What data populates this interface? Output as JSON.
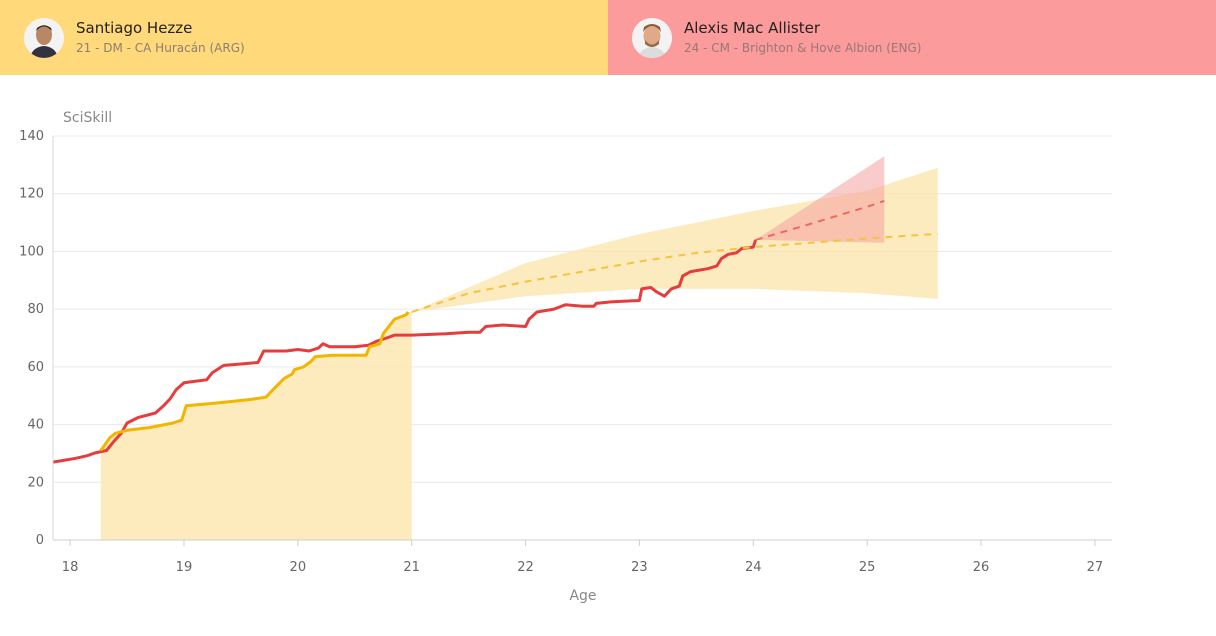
{
  "players": [
    {
      "name": "Santiago Hezze",
      "meta": "21 - DM - CA Huracán (ARG)",
      "color": "#ffd97a",
      "line_color": "#f2b500",
      "avatar_icon": "player-photo"
    },
    {
      "name": "Alexis Mac Allister",
      "meta": "24 - CM - Brighton & Hove Albion (ENG)",
      "color": "#fc9b9b",
      "line_color": "#e63c3c",
      "avatar_icon": "player-photo"
    }
  ],
  "chart_data": {
    "type": "line",
    "xlabel": "Age",
    "ylabel": "SciSkill",
    "xlim": [
      17.85,
      27.15
    ],
    "ylim": [
      0,
      140
    ],
    "xticks": [
      18,
      19,
      20,
      21,
      22,
      23,
      24,
      25,
      26,
      27
    ],
    "yticks": [
      0,
      20,
      40,
      60,
      80,
      100,
      120,
      140
    ],
    "grid": "horizontal",
    "series": [
      {
        "name": "Santiago Hezze",
        "color": "#f2b500",
        "history": [
          [
            18.27,
            31
          ],
          [
            18.35,
            35.5
          ],
          [
            18.4,
            37
          ],
          [
            18.5,
            38
          ],
          [
            18.7,
            39
          ],
          [
            18.9,
            40.5
          ],
          [
            18.98,
            41.5
          ],
          [
            19.02,
            46.5
          ],
          [
            19.3,
            47.5
          ],
          [
            19.6,
            48.8
          ],
          [
            19.72,
            49.5
          ],
          [
            19.78,
            52
          ],
          [
            19.88,
            56
          ],
          [
            19.95,
            57.5
          ],
          [
            19.97,
            59
          ],
          [
            20.05,
            60
          ],
          [
            20.12,
            62
          ],
          [
            20.15,
            63.5
          ],
          [
            20.3,
            64
          ],
          [
            20.6,
            64
          ],
          [
            20.63,
            67
          ],
          [
            20.72,
            68
          ],
          [
            20.75,
            71.5
          ],
          [
            20.82,
            75
          ],
          [
            20.85,
            76.5
          ],
          [
            20.95,
            78
          ],
          [
            20.97,
            79
          ]
        ],
        "history_band_bottom": 0,
        "projection": [
          [
            21.0,
            79
          ],
          [
            21.5,
            85.5
          ],
          [
            22,
            89.5
          ],
          [
            22.5,
            93
          ],
          [
            23,
            96.5
          ],
          [
            23.5,
            99.5
          ],
          [
            24,
            101.5
          ],
          [
            24.5,
            103
          ],
          [
            25,
            104.5
          ],
          [
            25.5,
            105.8
          ],
          [
            25.62,
            106
          ]
        ],
        "projection_upper": [
          [
            21.0,
            79
          ],
          [
            22,
            96
          ],
          [
            23,
            106
          ],
          [
            24,
            114
          ],
          [
            25,
            121
          ],
          [
            25.62,
            129
          ]
        ],
        "projection_lower": [
          [
            21.0,
            79
          ],
          [
            22,
            84.5
          ],
          [
            23,
            87
          ],
          [
            24,
            87
          ],
          [
            25,
            85.5
          ],
          [
            25.62,
            83.5
          ]
        ]
      },
      {
        "name": "Alexis Mac Allister",
        "color": "#e63c3c",
        "history": [
          [
            17.85,
            27
          ],
          [
            18.05,
            28.3
          ],
          [
            18.15,
            29.2
          ],
          [
            18.22,
            30.2
          ],
          [
            18.32,
            31
          ],
          [
            18.38,
            34
          ],
          [
            18.45,
            37
          ],
          [
            18.5,
            40.5
          ],
          [
            18.6,
            42.5
          ],
          [
            18.75,
            44
          ],
          [
            18.82,
            46.5
          ],
          [
            18.88,
            49
          ],
          [
            18.93,
            52
          ],
          [
            19.0,
            54.5
          ],
          [
            19.1,
            55
          ],
          [
            19.2,
            55.5
          ],
          [
            19.25,
            58
          ],
          [
            19.35,
            60.5
          ],
          [
            19.5,
            61
          ],
          [
            19.65,
            61.5
          ],
          [
            19.7,
            65.5
          ],
          [
            19.9,
            65.5
          ],
          [
            20.0,
            66
          ],
          [
            20.1,
            65.5
          ],
          [
            20.18,
            66.5
          ],
          [
            20.22,
            68
          ],
          [
            20.28,
            67
          ],
          [
            20.5,
            67
          ],
          [
            20.62,
            67.5
          ],
          [
            20.7,
            69
          ],
          [
            20.78,
            70
          ],
          [
            20.85,
            71
          ],
          [
            21.0,
            71
          ],
          [
            21.3,
            71.5
          ],
          [
            21.5,
            72
          ],
          [
            21.6,
            72
          ],
          [
            21.65,
            74
          ],
          [
            21.8,
            74.5
          ],
          [
            22.0,
            74
          ],
          [
            22.03,
            76.5
          ],
          [
            22.1,
            79
          ],
          [
            22.25,
            80
          ],
          [
            22.35,
            81.5
          ],
          [
            22.5,
            81
          ],
          [
            22.6,
            81
          ],
          [
            22.62,
            82
          ],
          [
            22.75,
            82.5
          ],
          [
            23.0,
            83
          ],
          [
            23.02,
            87
          ],
          [
            23.1,
            87.5
          ],
          [
            23.15,
            86
          ],
          [
            23.22,
            84.5
          ],
          [
            23.28,
            87
          ],
          [
            23.35,
            88
          ],
          [
            23.38,
            91.5
          ],
          [
            23.45,
            93
          ],
          [
            23.6,
            94
          ],
          [
            23.68,
            95
          ],
          [
            23.72,
            97.5
          ],
          [
            23.78,
            99
          ],
          [
            23.85,
            99.5
          ],
          [
            23.9,
            101
          ],
          [
            24.0,
            101.5
          ],
          [
            24.02,
            104
          ]
        ],
        "projection": [
          [
            24.02,
            104
          ],
          [
            24.5,
            109.5
          ],
          [
            25.0,
            115.5
          ],
          [
            25.15,
            117.5
          ]
        ],
        "projection_upper": [
          [
            24.02,
            104
          ],
          [
            25.15,
            133
          ]
        ],
        "projection_lower": [
          [
            24.02,
            104
          ],
          [
            25.15,
            103
          ]
        ]
      }
    ]
  }
}
